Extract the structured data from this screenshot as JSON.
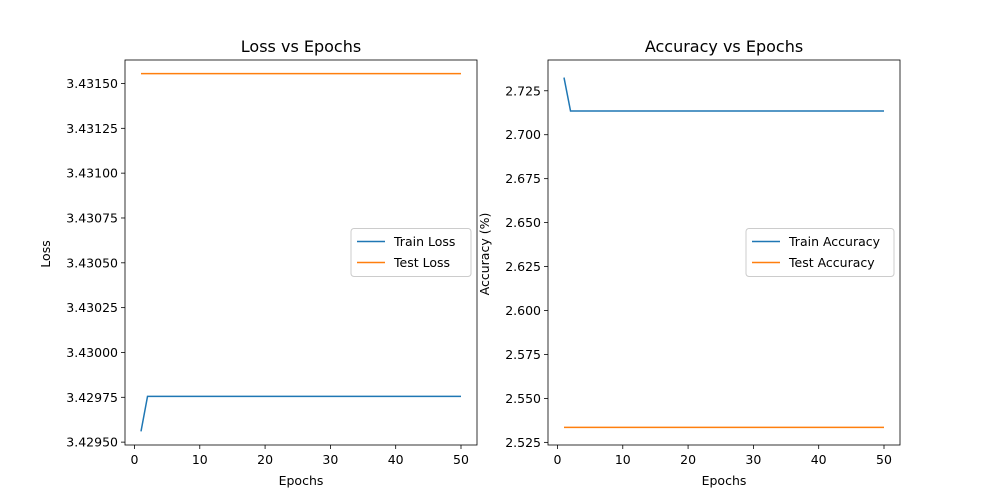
{
  "chart_data": [
    {
      "type": "line",
      "title": "Loss vs Epochs",
      "xlabel": "Epochs",
      "ylabel": "Loss",
      "xlim": [
        -1.45,
        52.45
      ],
      "ylim": [
        3.429484,
        3.431631
      ],
      "xticks": [
        0,
        10,
        20,
        30,
        40,
        50
      ],
      "xtick_labels": [
        "0",
        "10",
        "20",
        "30",
        "40",
        "50"
      ],
      "yticks": [
        3.4295,
        3.42975,
        3.43,
        3.43025,
        3.4305,
        3.43075,
        3.431,
        3.43125,
        3.4315
      ],
      "ytick_labels": [
        "3.42950",
        "3.42975",
        "3.43000",
        "3.43025",
        "3.43050",
        "3.43075",
        "3.43100",
        "3.43125",
        "3.43150"
      ],
      "grid": false,
      "legend_position": "center-right",
      "series": [
        {
          "name": "Train Loss",
          "color": "#1f77b4",
          "x": [
            1,
            2,
            50
          ],
          "y": [
            3.42956,
            3.429755,
            3.429755
          ]
        },
        {
          "name": "Test Loss",
          "color": "#ff7f0e",
          "x": [
            1,
            50
          ],
          "y": [
            3.431555,
            3.431555
          ]
        }
      ]
    },
    {
      "type": "line",
      "title": "Accuracy vs Epochs",
      "xlabel": "Epochs",
      "ylabel": "Accuracy (%)",
      "xlim": [
        -1.45,
        52.45
      ],
      "ylim": [
        2.5235,
        2.7425
      ],
      "xticks": [
        0,
        10,
        20,
        30,
        40,
        50
      ],
      "xtick_labels": [
        "0",
        "10",
        "20",
        "30",
        "40",
        "50"
      ],
      "yticks": [
        2.525,
        2.55,
        2.575,
        2.6,
        2.625,
        2.65,
        2.675,
        2.7,
        2.725
      ],
      "ytick_labels": [
        "2.525",
        "2.550",
        "2.575",
        "2.600",
        "2.625",
        "2.650",
        "2.675",
        "2.700",
        "2.725"
      ],
      "grid": false,
      "legend_position": "center-right",
      "series": [
        {
          "name": "Train Accuracy",
          "color": "#1f77b4",
          "x": [
            1,
            2,
            50
          ],
          "y": [
            2.7325,
            2.7135,
            2.7135
          ]
        },
        {
          "name": "Test Accuracy",
          "color": "#ff7f0e",
          "x": [
            1,
            50
          ],
          "y": [
            2.5335,
            2.5335
          ]
        }
      ]
    }
  ]
}
